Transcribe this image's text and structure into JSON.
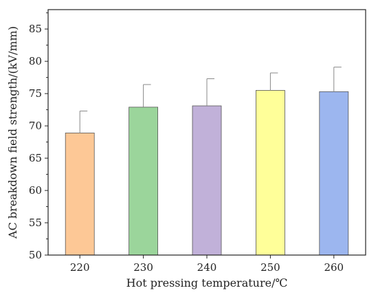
{
  "chart_data": {
    "type": "bar",
    "title": "",
    "xlabel": "Hot pressing temperature/℃",
    "ylabel": "AC breakdown field strength/(kV/mm)",
    "categories": [
      "220",
      "230",
      "240",
      "250",
      "260"
    ],
    "values": [
      68.9,
      72.9,
      73.1,
      75.5,
      75.3
    ],
    "errors": [
      3.4,
      3.5,
      4.2,
      2.7,
      3.8
    ],
    "colors": [
      "#fdc896",
      "#9bd59b",
      "#c1b1d9",
      "#ffff99",
      "#9cb6ef"
    ],
    "ylim": [
      50,
      88
    ],
    "yticks": [
      50,
      55,
      60,
      65,
      70,
      75,
      80,
      85
    ],
    "grid": false,
    "legend": "none"
  }
}
